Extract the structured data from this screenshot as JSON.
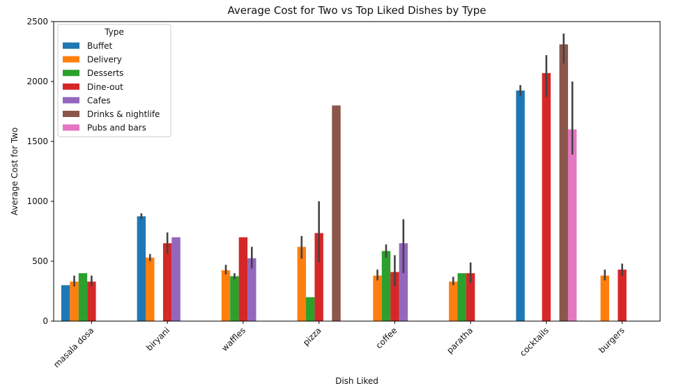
{
  "chart_data": {
    "type": "bar",
    "title": "Average Cost for Two vs Top Liked Dishes by Type",
    "xlabel": "Dish Liked",
    "ylabel": "Average Cost for Two",
    "ylim": [
      0,
      2500
    ],
    "yticks": [
      0,
      500,
      1000,
      1500,
      2000,
      2500
    ],
    "grid": false,
    "legend_title": "Type",
    "legend_placement": "top-left",
    "categories": [
      "masala dosa",
      "biryani",
      "waffles",
      "pizza",
      "coffee",
      "paratha",
      "cocktails",
      "burgers"
    ],
    "series": [
      {
        "name": "Buffet",
        "color": "#1f77b4",
        "values": [
          300,
          875,
          null,
          null,
          null,
          null,
          1925,
          null
        ],
        "err_low": [
          null,
          850,
          null,
          null,
          null,
          null,
          1880,
          null
        ],
        "err_high": [
          null,
          900,
          null,
          null,
          null,
          null,
          1970,
          null
        ]
      },
      {
        "name": "Delivery",
        "color": "#ff7f0e",
        "values": [
          330,
          530,
          425,
          620,
          380,
          330,
          null,
          380
        ],
        "err_low": [
          290,
          500,
          390,
          520,
          340,
          300,
          null,
          340
        ],
        "err_high": [
          380,
          560,
          470,
          710,
          430,
          370,
          null,
          430
        ]
      },
      {
        "name": "Desserts",
        "color": "#2ca02c",
        "values": [
          400,
          null,
          375,
          200,
          585,
          400,
          null,
          null
        ],
        "err_low": [
          null,
          null,
          350,
          null,
          530,
          null,
          null,
          null
        ],
        "err_high": [
          null,
          null,
          400,
          null,
          640,
          null,
          null,
          null
        ]
      },
      {
        "name": "Dine-out",
        "color": "#d62728",
        "values": [
          330,
          650,
          700,
          735,
          410,
          400,
          2070,
          430
        ],
        "err_low": [
          290,
          560,
          null,
          490,
          290,
          320,
          1870,
          380
        ],
        "err_high": [
          380,
          740,
          null,
          1000,
          550,
          490,
          2220,
          480
        ]
      },
      {
        "name": "Cafes",
        "color": "#9467bd",
        "values": [
          null,
          700,
          525,
          null,
          650,
          null,
          null,
          null
        ],
        "err_low": [
          null,
          null,
          440,
          null,
          400,
          null,
          null,
          null
        ],
        "err_high": [
          null,
          null,
          620,
          null,
          850,
          null,
          null,
          null
        ]
      },
      {
        "name": "Drinks & nightlife",
        "color": "#8c564b",
        "values": [
          null,
          null,
          null,
          1800,
          null,
          null,
          2310,
          null
        ],
        "err_low": [
          null,
          null,
          null,
          null,
          null,
          null,
          2150,
          null
        ],
        "err_high": [
          null,
          null,
          null,
          null,
          null,
          null,
          2400,
          null
        ]
      },
      {
        "name": "Pubs and bars",
        "color": "#e377c2",
        "values": [
          null,
          null,
          null,
          null,
          null,
          null,
          1600,
          null
        ],
        "err_low": [
          null,
          null,
          null,
          null,
          null,
          null,
          1390,
          null
        ],
        "err_high": [
          null,
          null,
          null,
          null,
          null,
          null,
          2000,
          null
        ]
      }
    ]
  }
}
